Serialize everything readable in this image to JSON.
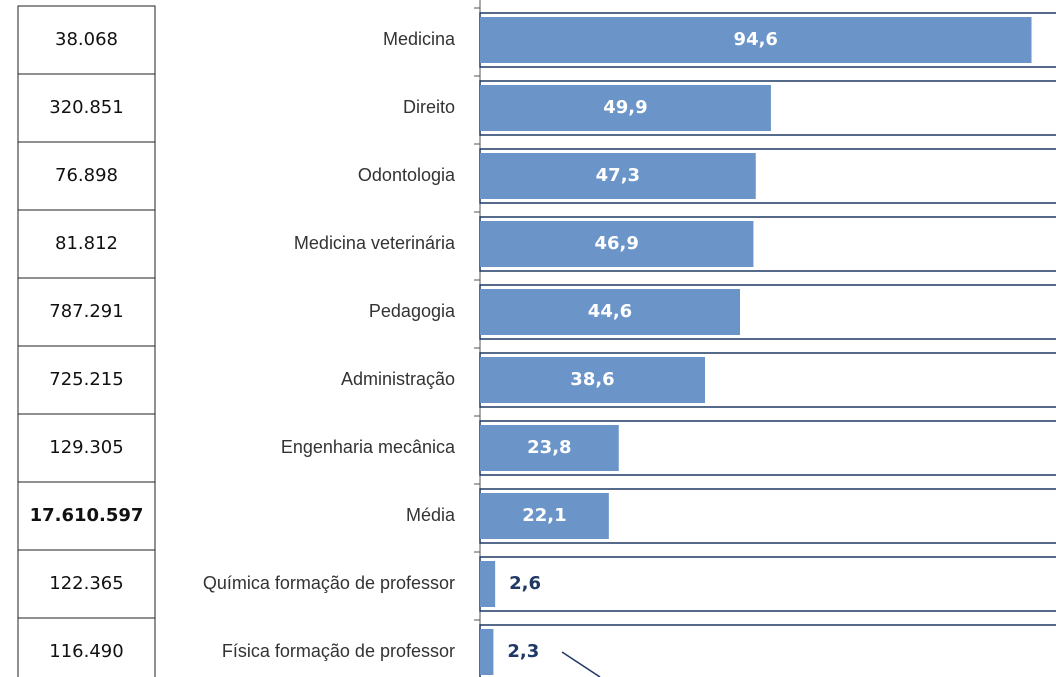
{
  "chart_data": {
    "type": "bar",
    "orientation": "horizontal",
    "categories": [
      "Medicina",
      "Direito",
      "Odontologia",
      "Medicina veterinária",
      "Pedagogia",
      "Administração",
      "Engenharia mecânica",
      "Média",
      "Química formação de professor",
      "Física formação de professor"
    ],
    "values": [
      94.6,
      49.9,
      47.3,
      46.9,
      44.6,
      38.6,
      23.8,
      22.1,
      2.6,
      2.3
    ],
    "value_labels": [
      "94,6",
      "49,9",
      "47,3",
      "46,9",
      "44,6",
      "38,6",
      "23,8",
      "22,1",
      "2,6",
      "2,3"
    ],
    "row_labels": [
      "38.068",
      "320.851",
      "76.898",
      "81.812",
      "787.291",
      "725.215",
      "129.305",
      "17.610.597",
      "122.365",
      "116.490"
    ],
    "highlight_index": 7,
    "color": "#6b94c9",
    "xlim": [
      0,
      100
    ]
  }
}
